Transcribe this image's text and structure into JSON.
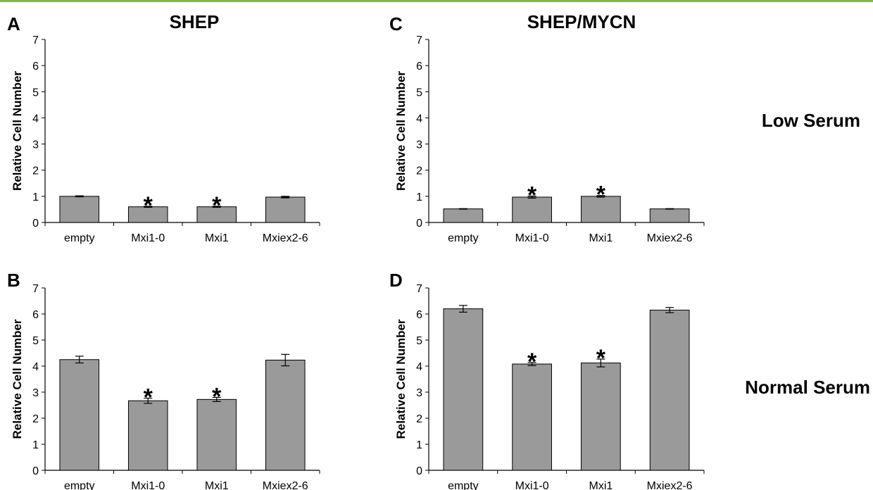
{
  "colors": {
    "accent_rule": "#7dba43",
    "bar_fill": "#9a9a9a",
    "bar_stroke": "#000000",
    "axis": "#000000",
    "text": "#000000"
  },
  "row_labels": [
    "Low Serum",
    "Normal Serum"
  ],
  "chart_data": [
    {
      "type": "bar",
      "panel": "A",
      "title": "SHEP",
      "ylabel": "Relative Cell Number",
      "xlabel": "",
      "categories": [
        "empty",
        "Mxi1-0",
        "Mxi1",
        "Mxiex2-6"
      ],
      "values": [
        1.0,
        0.6,
        0.6,
        0.97
      ],
      "errors": [
        0.02,
        0.02,
        0.02,
        0.03
      ],
      "significance": [
        "",
        "*",
        "*",
        ""
      ],
      "ylim": [
        0,
        7
      ],
      "yticks": [
        "0",
        "1",
        "2",
        "3",
        "4",
        "5",
        "6",
        "7"
      ],
      "grid": false
    },
    {
      "type": "bar",
      "panel": "B",
      "title": "",
      "ylabel": "Relative Cell Number",
      "xlabel": "",
      "categories": [
        "empty",
        "Mxi1-0",
        "Mxi1",
        "Mxiex2-6"
      ],
      "values": [
        4.25,
        2.67,
        2.72,
        4.23
      ],
      "errors": [
        0.13,
        0.1,
        0.08,
        0.22
      ],
      "significance": [
        "",
        "*",
        "*",
        ""
      ],
      "ylim": [
        0,
        7
      ],
      "yticks": [
        "0",
        "1",
        "2",
        "3",
        "4",
        "5",
        "6",
        "7"
      ],
      "grid": false
    },
    {
      "type": "bar",
      "panel": "C",
      "title": "SHEP/MYCN",
      "ylabel": "Relative Cell Number",
      "xlabel": "",
      "categories": [
        "empty",
        "Mxi1-0",
        "Mxi1",
        "Mxiex2-6"
      ],
      "values": [
        0.52,
        0.97,
        1.0,
        0.52
      ],
      "errors": [
        0.01,
        0.04,
        0.03,
        0.01
      ],
      "significance": [
        "",
        "*",
        "*",
        ""
      ],
      "ylim": [
        0,
        7
      ],
      "yticks": [
        "0",
        "1",
        "2",
        "3",
        "4",
        "5",
        "6",
        "7"
      ],
      "grid": false
    },
    {
      "type": "bar",
      "panel": "D",
      "title": "",
      "ylabel": "Relative Cell Number",
      "xlabel": "",
      "categories": [
        "empty",
        "Mxi1-0",
        "Mxi1",
        "Mxiex2-6"
      ],
      "values": [
        6.2,
        4.08,
        4.12,
        6.15
      ],
      "errors": [
        0.13,
        0.06,
        0.15,
        0.1
      ],
      "significance": [
        "",
        "*",
        "*",
        ""
      ],
      "ylim": [
        0,
        7
      ],
      "yticks": [
        "0",
        "1",
        "2",
        "3",
        "4",
        "5",
        "6",
        "7"
      ],
      "grid": false
    }
  ]
}
